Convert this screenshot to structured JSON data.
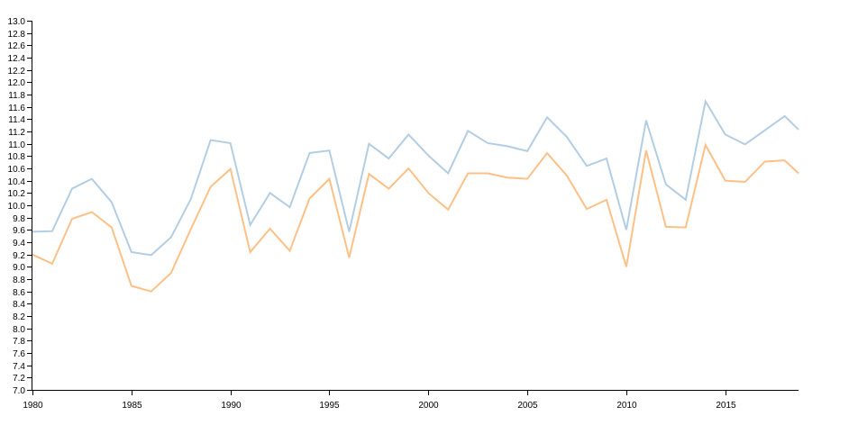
{
  "chart_data": {
    "type": "line",
    "title": "",
    "xlabel": "",
    "ylabel": "",
    "xlim": [
      1980,
      2018.7
    ],
    "ylim": [
      7.0,
      13.0
    ],
    "grid": false,
    "x_ticks": [
      "1980",
      "1985",
      "1990",
      "1995",
      "2000",
      "2005",
      "2010",
      "2015"
    ],
    "y_ticks": [
      "7.0",
      "7.2",
      "7.4",
      "7.6",
      "7.8",
      "8.0",
      "8.2",
      "8.4",
      "8.6",
      "8.8",
      "9.0",
      "9.2",
      "9.4",
      "9.6",
      "9.8",
      "10.0",
      "10.2",
      "10.4",
      "10.6",
      "10.8",
      "11.0",
      "11.2",
      "11.4",
      "11.6",
      "11.8",
      "12.0",
      "12.2",
      "12.4",
      "12.6",
      "12.8",
      "13.0"
    ],
    "x": [
      1980,
      1981,
      1982,
      1983,
      1984,
      1985,
      1986,
      1987,
      1988,
      1989,
      1990,
      1991,
      1992,
      1993,
      1994,
      1995,
      1996,
      1997,
      1998,
      1999,
      2000,
      2001,
      2002,
      2003,
      2004,
      2005,
      2006,
      2007,
      2008,
      2009,
      2010,
      2011,
      2012,
      2013,
      2014,
      2015,
      2016,
      2017,
      2018,
      2018.7
    ],
    "series": [
      {
        "color": "#b3cde3",
        "values": [
          9.57,
          9.58,
          10.27,
          10.43,
          10.05,
          9.24,
          9.19,
          9.48,
          10.1,
          11.06,
          11.01,
          9.68,
          10.2,
          9.97,
          10.85,
          10.89,
          9.57,
          11.0,
          10.76,
          11.15,
          10.81,
          10.52,
          11.21,
          11.01,
          10.96,
          10.88,
          11.43,
          11.11,
          10.64,
          10.76,
          9.6,
          11.38,
          10.34,
          10.09,
          11.69,
          11.15,
          10.99,
          11.22,
          11.45,
          11.23
        ]
      },
      {
        "color": "#fdc086",
        "values": [
          9.2,
          9.05,
          9.78,
          9.89,
          9.64,
          8.69,
          8.6,
          8.9,
          9.61,
          10.3,
          10.59,
          9.24,
          9.62,
          9.26,
          10.11,
          10.43,
          9.15,
          10.51,
          10.27,
          10.6,
          10.2,
          9.93,
          10.52,
          10.52,
          10.45,
          10.43,
          10.85,
          10.48,
          9.94,
          10.09,
          9.0,
          10.89,
          9.65,
          9.64,
          10.98,
          10.4,
          10.38,
          10.71,
          10.73,
          10.52
        ]
      }
    ]
  }
}
